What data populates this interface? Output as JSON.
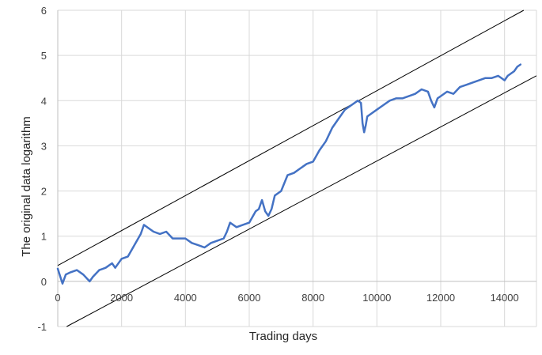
{
  "chart_data": {
    "type": "line",
    "title": "",
    "xlabel": "Trading days",
    "ylabel": "The original data logarithm",
    "xlim": [
      0,
      15000
    ],
    "ylim": [
      -1,
      6
    ],
    "xticks": [
      0,
      2000,
      4000,
      6000,
      8000,
      10000,
      12000,
      14000
    ],
    "yticks": [
      -1,
      0,
      1,
      2,
      3,
      4,
      5,
      6
    ],
    "grid": true,
    "legend": "none",
    "colors": {
      "series": "#4472c4",
      "channel": "#000000",
      "grid": "#d9d9d9"
    },
    "series": [
      {
        "x": [
          0,
          150,
          250,
          400,
          600,
          800,
          1000,
          1100,
          1300,
          1500,
          1700,
          1800,
          2000,
          2200,
          2400,
          2600,
          2700,
          2800,
          3000,
          3200,
          3400,
          3600,
          3800,
          4000,
          4200,
          4400,
          4600,
          4700,
          4800,
          5000,
          5200,
          5300,
          5400,
          5600,
          5800,
          6000,
          6200,
          6300,
          6400,
          6500,
          6600,
          6700,
          6800,
          7000,
          7200,
          7400,
          7600,
          7800,
          8000,
          8200,
          8400,
          8600,
          8800,
          9000,
          9200,
          9400,
          9500,
          9550,
          9600,
          9650,
          9700,
          9800,
          10000,
          10200,
          10400,
          10600,
          10800,
          11000,
          11200,
          11400,
          11600,
          11700,
          11800,
          11900,
          12000,
          12200,
          12400,
          12600,
          12800,
          13000,
          13200,
          13400,
          13600,
          13800,
          14000,
          14100,
          14200,
          14300,
          14400,
          14500
        ],
        "y": [
          0.28,
          -0.05,
          0.15,
          0.2,
          0.25,
          0.15,
          0.0,
          0.1,
          0.25,
          0.3,
          0.4,
          0.3,
          0.5,
          0.55,
          0.8,
          1.05,
          1.25,
          1.2,
          1.1,
          1.05,
          1.1,
          0.95,
          0.95,
          0.95,
          0.85,
          0.8,
          0.75,
          0.8,
          0.85,
          0.9,
          0.95,
          1.1,
          1.3,
          1.2,
          1.25,
          1.3,
          1.55,
          1.6,
          1.8,
          1.55,
          1.45,
          1.6,
          1.9,
          2.0,
          2.35,
          2.4,
          2.5,
          2.6,
          2.65,
          2.9,
          3.1,
          3.4,
          3.6,
          3.8,
          3.9,
          4.0,
          3.95,
          3.5,
          3.3,
          3.45,
          3.65,
          3.7,
          3.8,
          3.9,
          4.0,
          4.05,
          4.05,
          4.1,
          4.15,
          4.25,
          4.2,
          4.0,
          3.85,
          4.05,
          4.1,
          4.2,
          4.15,
          4.3,
          4.35,
          4.4,
          4.45,
          4.5,
          4.5,
          4.55,
          4.45,
          4.55,
          4.6,
          4.65,
          4.75,
          4.8
        ]
      }
    ],
    "reference_lines": [
      {
        "x": [
          0,
          14600
        ],
        "y": [
          0.35,
          6.0
        ]
      },
      {
        "x": [
          280,
          15000
        ],
        "y": [
          -1.0,
          4.55
        ]
      }
    ]
  }
}
